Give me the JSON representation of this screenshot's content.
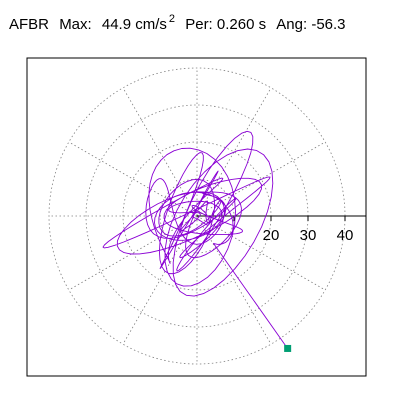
{
  "header": {
    "station": "AFBR",
    "max_label": "Max:",
    "max_value": "44.9",
    "max_unit": "cm/s",
    "max_unit_exp": "2",
    "per_label": "Per:",
    "per_value": "0.260 s",
    "ang_label": "Ang:",
    "ang_value": "-56.3"
  },
  "chart_data": {
    "type": "scatter",
    "description_of_series": "orbital response trace",
    "ring_ticks": [
      "20",
      "30",
      "40"
    ],
    "ring_values": [
      20,
      30,
      40
    ],
    "grid": true,
    "colors": {
      "trace": "#8a00d4",
      "grid": "#808080",
      "end_marker": "#009e73"
    },
    "end_point": {
      "x": 24.5,
      "y": -35.8
    },
    "trace_seed": 7,
    "trace_points": 620
  }
}
